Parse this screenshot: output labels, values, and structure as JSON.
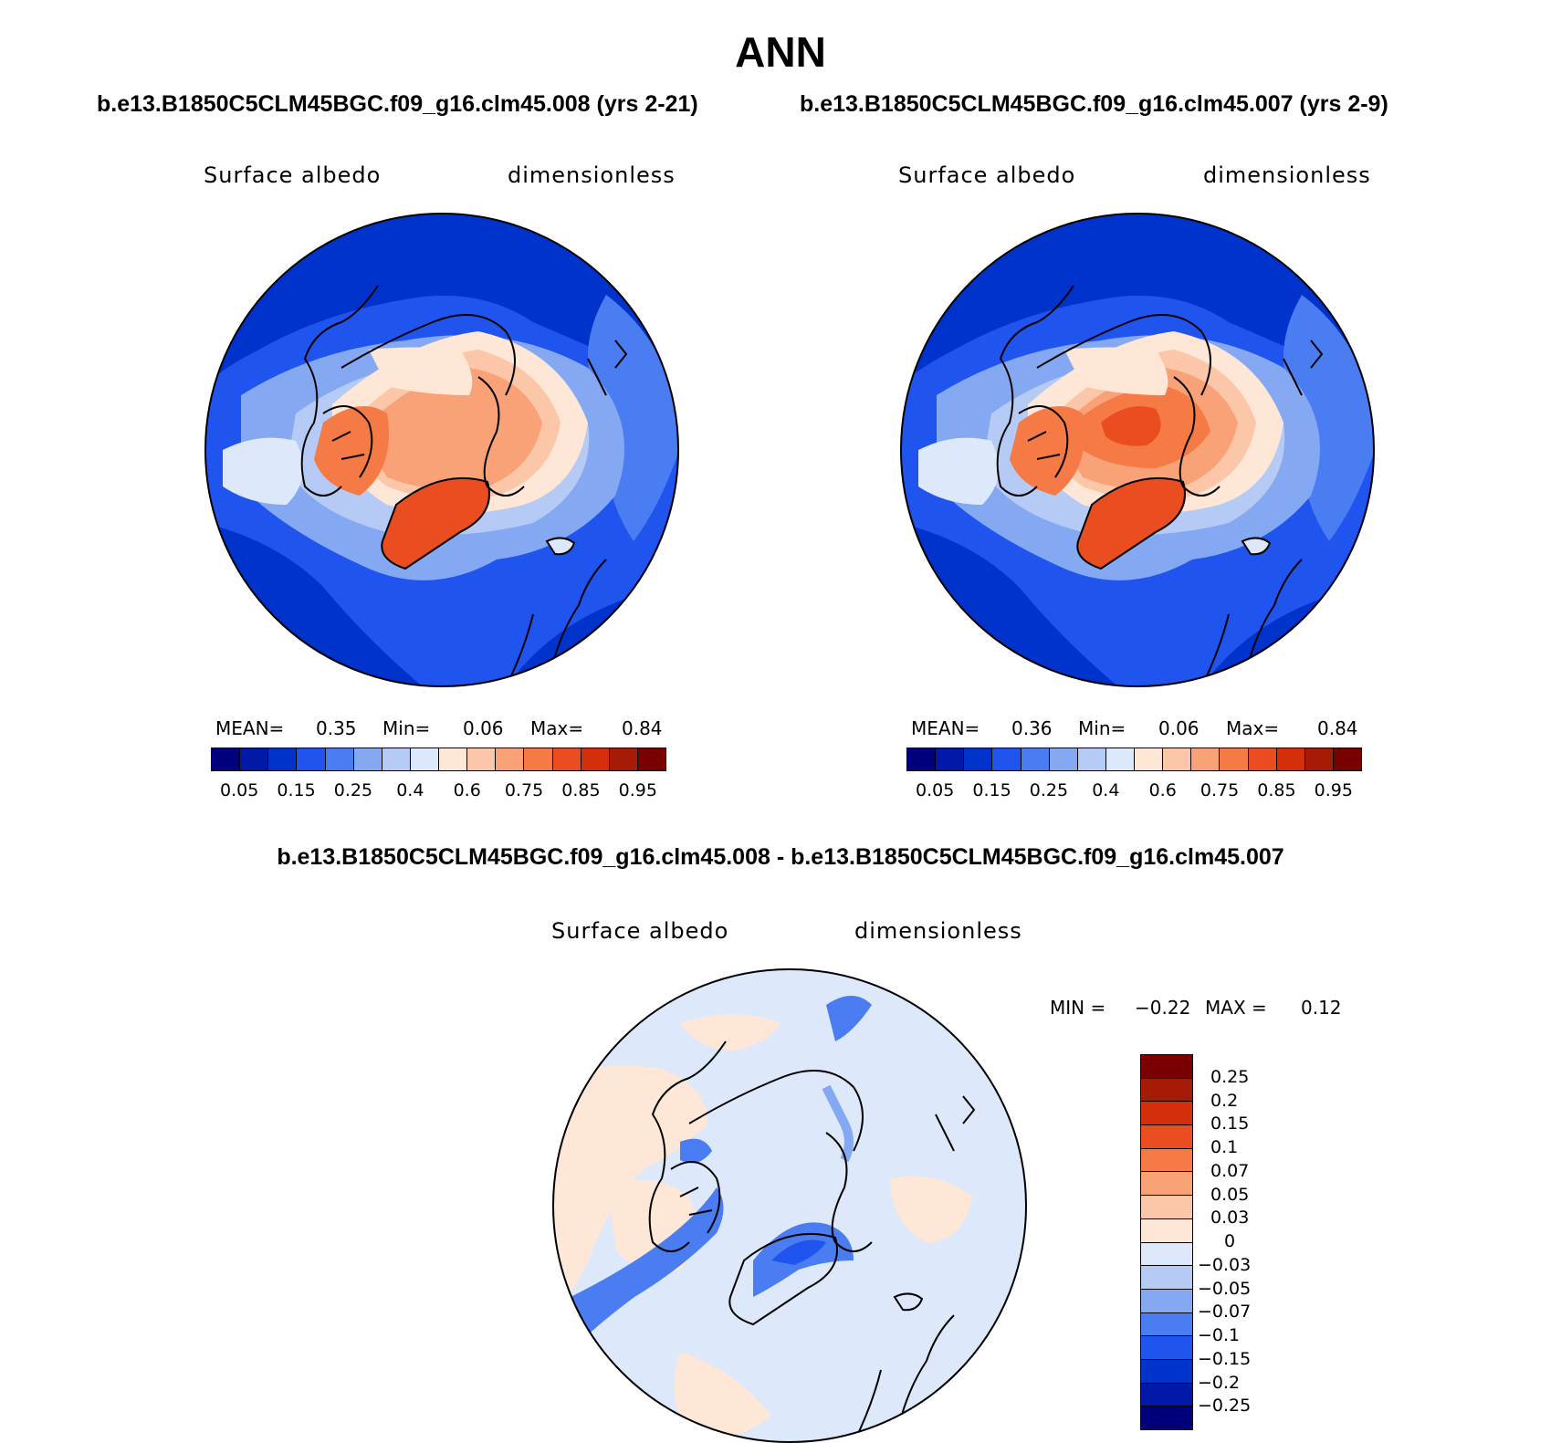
{
  "page": {
    "title": "ANN",
    "case_left": "b.e13.B1850C5CLM45BGC.f09_g16.clm45.008 (yrs 2-21)",
    "case_right": "b.e13.B1850C5CLM45BGC.f09_g16.clm45.007 (yrs 2-9)",
    "diff_title": "b.e13.B1850C5CLM45BGC.f09_g16.clm45.008 - b.e13.B1850C5CLM45BGC.f09_g16.clm45.007"
  },
  "panels": {
    "left": {
      "variable": "Surface albedo",
      "units": "dimensionless",
      "mean_label": "MEAN=",
      "mean": "0.35",
      "min_label": "Min=",
      "min": "0.06",
      "max_label": "Max=",
      "max": "0.84"
    },
    "right": {
      "variable": "Surface albedo",
      "units": "dimensionless",
      "mean_label": "MEAN=",
      "mean": "0.36",
      "min_label": "Min=",
      "min": "0.06",
      "max_label": "Max=",
      "max": "0.84"
    },
    "diff": {
      "variable": "Surface albedo",
      "units": "dimensionless",
      "min_label": "MIN =",
      "min": "−0.22",
      "max_label": "MAX =",
      "max": "0.12"
    }
  },
  "colorbar_main": {
    "colors": [
      "#00007d",
      "#0019a6",
      "#0033cc",
      "#1f55ee",
      "#4a7df2",
      "#85a8f2",
      "#b5cbf5",
      "#dde9fa",
      "#fee7d6",
      "#fcc6a8",
      "#f9a278",
      "#f57a45",
      "#ea4d1f",
      "#d42e0a",
      "#a51b06",
      "#7a0000"
    ],
    "tick_labels": [
      "0.05",
      "0.15",
      "0.25",
      "0.4",
      "0.6",
      "0.75",
      "0.85",
      "0.95"
    ]
  },
  "colorbar_diff": {
    "colors": [
      "#7a0000",
      "#a51b06",
      "#d42e0a",
      "#ea4d1f",
      "#f57a45",
      "#f9a278",
      "#fcc6a8",
      "#fee7d6",
      "#dde9fa",
      "#b5cbf5",
      "#85a8f2",
      "#4a7df2",
      "#1f55ee",
      "#0033cc",
      "#0019a6",
      "#00007d"
    ],
    "tick_labels": [
      "0.25",
      "0.2",
      "0.15",
      "0.1",
      "0.07",
      "0.05",
      "0.03",
      "0",
      "−0.03",
      "−0.05",
      "−0.07",
      "−0.1",
      "−0.15",
      "−0.2",
      "−0.25"
    ]
  }
}
